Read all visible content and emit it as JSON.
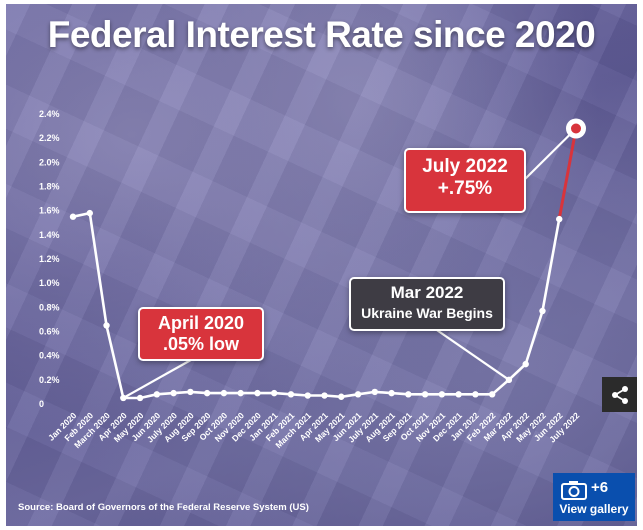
{
  "title": "Federal Interest Rate since 2020",
  "source": "Source: Board of Governors of the Federal Reserve System (US)",
  "callouts": {
    "april_2020": {
      "line1": "April 2020",
      "line2": ".05% low"
    },
    "mar_2022": {
      "line1": "Mar 2022",
      "line2": "Ukraine War Begins"
    },
    "july_2022": {
      "line1": "July 2022",
      "line2": "+.75%"
    }
  },
  "gallery": {
    "count": "+6",
    "label": "View gallery",
    "icon": "camera-icon"
  },
  "share": {
    "icon": "share-icon"
  },
  "colors": {
    "line": "#ffffff",
    "highlight": "#d8343c",
    "callout_red": "#d8343c",
    "callout_dark": "#3e3c44",
    "gallery_blue": "#0a4fae"
  },
  "chart_data": {
    "type": "line",
    "title": "Federal Interest Rate since 2020",
    "xlabel": "",
    "ylabel": "",
    "ylim": [
      0,
      2.4
    ],
    "yticks": [
      0,
      0.2,
      0.4,
      0.6,
      0.8,
      1.0,
      1.2,
      1.4,
      1.6,
      1.8,
      2.0,
      2.2,
      2.4
    ],
    "ytick_labels": [
      "0",
      "0.2%",
      "0.4%",
      "0.6%",
      "0.8%",
      "1.0%",
      "1.2%",
      "1.4%",
      "1.6%",
      "1.8%",
      "2.0%",
      "2.2%",
      "2.4%"
    ],
    "categories": [
      "Jan 2020",
      "Feb 2020",
      "March 2020",
      "Apr 2020",
      "May 2020",
      "Jun 2020",
      "July 2020",
      "Aug 2020",
      "Sep 2020",
      "Oct 2020",
      "Nov 2020",
      "Dec 2020",
      "Jan 2021",
      "Feb 2021",
      "March 2021",
      "Apr 2021",
      "May 2021",
      "Jun 2021",
      "July 2021",
      "Aug 2021",
      "Sep 2021",
      "Oct 2021",
      "Nov 2021",
      "Dec 2021",
      "Jan 2022",
      "Feb 2022",
      "Mar 2022",
      "Apr 2022",
      "May 2022",
      "Jun 2022",
      "July 2022"
    ],
    "values": [
      1.55,
      1.58,
      0.65,
      0.05,
      0.05,
      0.08,
      0.09,
      0.1,
      0.09,
      0.09,
      0.09,
      0.09,
      0.09,
      0.08,
      0.07,
      0.07,
      0.06,
      0.08,
      0.1,
      0.09,
      0.08,
      0.08,
      0.08,
      0.08,
      0.08,
      0.08,
      0.2,
      0.33,
      0.77,
      1.53,
      2.28
    ],
    "highlight_segment": [
      29,
      30
    ],
    "grid": false,
    "legend": "none"
  }
}
